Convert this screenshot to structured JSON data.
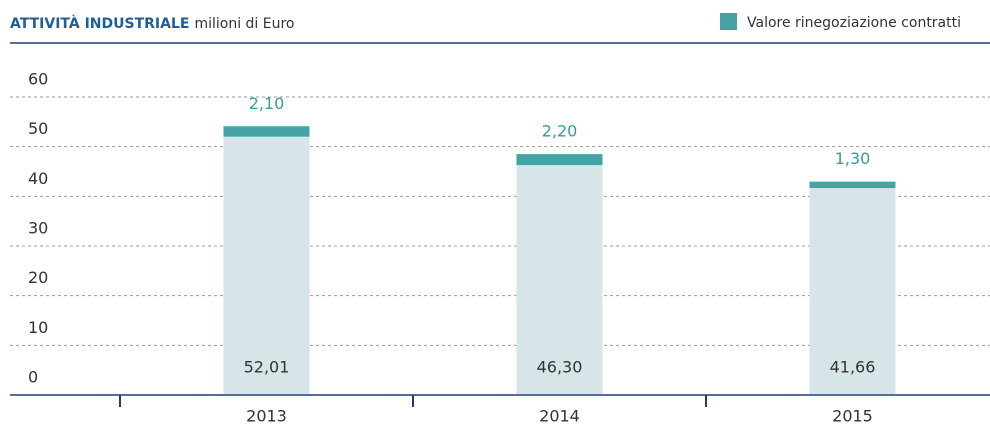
{
  "chart_data": {
    "type": "stacked_bar",
    "title": "ATTIVITÀ INDUSTRIALE",
    "subtitle": "milioni di Euro",
    "categories": [
      "2013",
      "2014",
      "2015"
    ],
    "series": [
      {
        "color": "#d5e5e8",
        "values": [
          52.01,
          46.3,
          41.66
        ],
        "value_labels": [
          "52,01",
          "46,30",
          "41,66"
        ]
      },
      {
        "name": "Valore rinegoziazione contratti",
        "color": "#45a3a5",
        "values": [
          2.1,
          2.2,
          1.3
        ],
        "value_labels": [
          "2,10",
          "2,20",
          "1,30"
        ]
      }
    ],
    "ylim": [
      0,
      60
    ],
    "yticks": [
      0,
      10,
      20,
      30,
      40,
      50,
      60
    ],
    "grid": true,
    "legend": "top-right"
  }
}
